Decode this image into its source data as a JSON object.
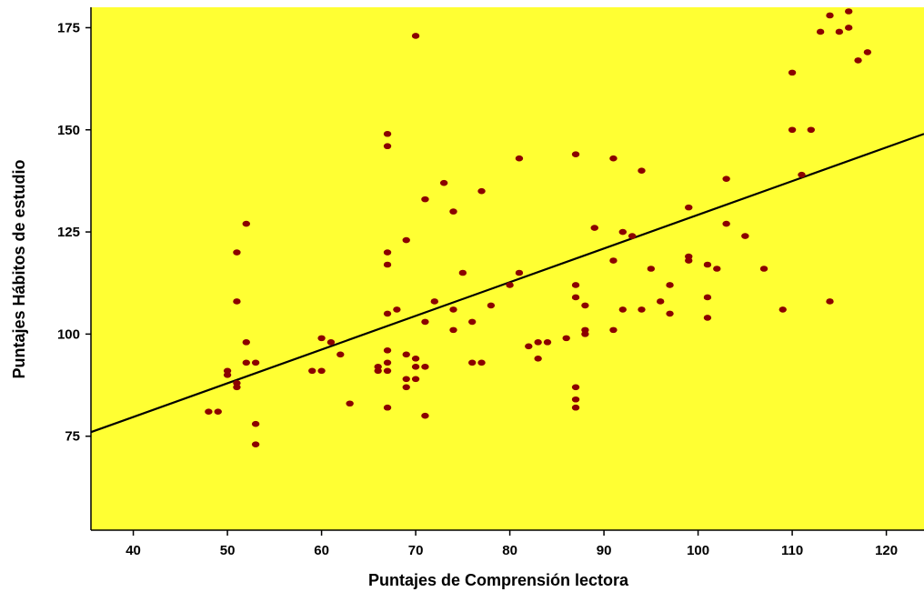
{
  "colors": {
    "plot_background": "#ffff33",
    "point_color": "#8b0000",
    "fit_line_color": "#000000",
    "axis_color": "#000000",
    "page_background": "#ffffff"
  },
  "chart_data": {
    "type": "scatter",
    "title": "",
    "xlabel": "Puntajes de Comprensión lectora",
    "ylabel": "Puntajes Hábitos de estudio",
    "xlim": [
      35.5,
      124
    ],
    "ylim": [
      52,
      180
    ],
    "x_ticks": [
      40,
      50,
      60,
      70,
      80,
      90,
      100,
      110,
      120
    ],
    "y_ticks": [
      75,
      100,
      125,
      150,
      175
    ],
    "grid": false,
    "legend": "none",
    "fit_line": {
      "x": [
        35.5,
        124
      ],
      "y": [
        76,
        149
      ]
    },
    "series": [
      {
        "points": [
          [
            48,
            81
          ],
          [
            49,
            81
          ],
          [
            50,
            91
          ],
          [
            50,
            90
          ],
          [
            51,
            120
          ],
          [
            51,
            108
          ],
          [
            51,
            88
          ],
          [
            51,
            87
          ],
          [
            52,
            127
          ],
          [
            52,
            98
          ],
          [
            52,
            93
          ],
          [
            53,
            93
          ],
          [
            53,
            78
          ],
          [
            53,
            73
          ],
          [
            59,
            91
          ],
          [
            60,
            99
          ],
          [
            60,
            91
          ],
          [
            61,
            98
          ],
          [
            62,
            95
          ],
          [
            63,
            83
          ],
          [
            66,
            92
          ],
          [
            66,
            91
          ],
          [
            67,
            149
          ],
          [
            67,
            146
          ],
          [
            67,
            120
          ],
          [
            67,
            117
          ],
          [
            67,
            105
          ],
          [
            67,
            96
          ],
          [
            67,
            93
          ],
          [
            67,
            91
          ],
          [
            67,
            82
          ],
          [
            68,
            106
          ],
          [
            69,
            123
          ],
          [
            69,
            95
          ],
          [
            69,
            89
          ],
          [
            69,
            87
          ],
          [
            70,
            173
          ],
          [
            70,
            94
          ],
          [
            70,
            92
          ],
          [
            70,
            89
          ],
          [
            71,
            133
          ],
          [
            71,
            103
          ],
          [
            71,
            92
          ],
          [
            71,
            80
          ],
          [
            72,
            108
          ],
          [
            73,
            137
          ],
          [
            74,
            130
          ],
          [
            74,
            106
          ],
          [
            74,
            101
          ],
          [
            75,
            115
          ],
          [
            76,
            103
          ],
          [
            76,
            93
          ],
          [
            77,
            135
          ],
          [
            77,
            93
          ],
          [
            78,
            107
          ],
          [
            80,
            112
          ],
          [
            81,
            143
          ],
          [
            81,
            115
          ],
          [
            82,
            97
          ],
          [
            83,
            98
          ],
          [
            83,
            94
          ],
          [
            84,
            98
          ],
          [
            86,
            99
          ],
          [
            87,
            144
          ],
          [
            87,
            112
          ],
          [
            87,
            109
          ],
          [
            87,
            87
          ],
          [
            87,
            84
          ],
          [
            87,
            82
          ],
          [
            88,
            107
          ],
          [
            88,
            101
          ],
          [
            88,
            100
          ],
          [
            89,
            126
          ],
          [
            91,
            143
          ],
          [
            91,
            118
          ],
          [
            91,
            101
          ],
          [
            92,
            125
          ],
          [
            92,
            106
          ],
          [
            93,
            124
          ],
          [
            94,
            140
          ],
          [
            94,
            106
          ],
          [
            95,
            116
          ],
          [
            96,
            108
          ],
          [
            97,
            112
          ],
          [
            97,
            105
          ],
          [
            99,
            131
          ],
          [
            99,
            119
          ],
          [
            99,
            118
          ],
          [
            101,
            117
          ],
          [
            101,
            109
          ],
          [
            101,
            104
          ],
          [
            102,
            116
          ],
          [
            103,
            138
          ],
          [
            103,
            127
          ],
          [
            105,
            124
          ],
          [
            107,
            116
          ],
          [
            109,
            106
          ],
          [
            110,
            164
          ],
          [
            110,
            150
          ],
          [
            111,
            139
          ],
          [
            112,
            150
          ],
          [
            113,
            174
          ],
          [
            114,
            178
          ],
          [
            114,
            108
          ],
          [
            115,
            174
          ],
          [
            116,
            179
          ],
          [
            116,
            175
          ],
          [
            117,
            167
          ],
          [
            118,
            169
          ]
        ]
      }
    ]
  }
}
